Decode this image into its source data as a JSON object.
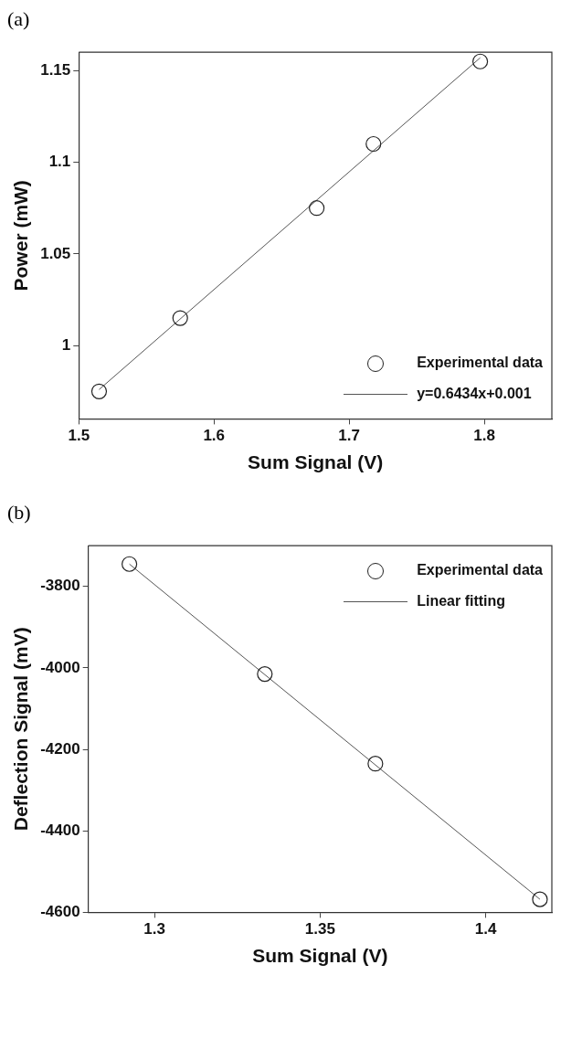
{
  "chart_data": [
    {
      "type": "scatter",
      "title": "(a)",
      "xlabel": "Sum Signal (V)",
      "ylabel": "Power (mW)",
      "xlim": [
        1.5,
        1.85
      ],
      "ylim": [
        0.96,
        1.16
      ],
      "xticks": [
        1.5,
        1.6,
        1.7,
        1.8
      ],
      "yticks": [
        1,
        1.05,
        1.1,
        1.15
      ],
      "grid": false,
      "legend": "bottom right",
      "series": [
        {
          "name": "Experimental data",
          "marker": "circle",
          "color": "#222222",
          "x": [
            1.515,
            1.575,
            1.676,
            1.718,
            1.797
          ],
          "values": [
            0.975,
            1.015,
            1.075,
            1.11,
            1.155
          ]
        },
        {
          "name": "y=0.6434x+0.001",
          "type": "line",
          "marker": "none",
          "line_style": "solid",
          "color": "#555555",
          "x": [
            1.515,
            1.797
          ],
          "values": [
            0.976,
            1.157
          ]
        }
      ]
    },
    {
      "type": "scatter",
      "title": "(b)",
      "xlabel": "Sum Signal (V)",
      "ylabel": "Deflection Signal (mV)",
      "xlim": [
        1.28,
        1.42
      ],
      "ylim": [
        -4600,
        -3700
      ],
      "xticks": [
        1.3,
        1.35,
        1.4
      ],
      "yticks": [
        -4600,
        -4400,
        -4200,
        -4000,
        -3800
      ],
      "grid": false,
      "legend": "top right",
      "series": [
        {
          "name": "Experimental data",
          "marker": "circle",
          "color": "#222222",
          "x": [
            1.2924,
            1.3333,
            1.3667,
            1.4164
          ],
          "values": [
            -3745,
            -4015,
            -4235,
            -4568
          ]
        },
        {
          "name": "Linear fitting",
          "type": "line",
          "marker": "none",
          "line_style": "solid",
          "color": "#555555",
          "x": [
            1.2924,
            1.4164
          ],
          "values": [
            -3745,
            -4568
          ]
        }
      ]
    }
  ]
}
